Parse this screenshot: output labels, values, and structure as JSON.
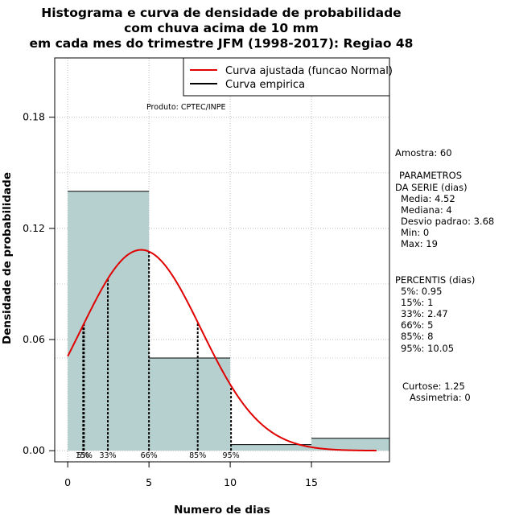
{
  "chart_data": {
    "type": "bar",
    "title_lines": [
      "Histograma e curva de densidade de probabilidade",
      "com chuva acima de 10 mm",
      "em cada mes do trimestre JFM (1998-2017): Regiao 48"
    ],
    "xlabel": "Numero de dias",
    "ylabel": "Densidade de probabilidade",
    "xlim": [
      -0.8,
      19.8
    ],
    "ylim": [
      -0.006,
      0.212
    ],
    "x_ticks": [
      0,
      5,
      10,
      15
    ],
    "y_ticks": [
      0.0,
      0.06,
      0.12,
      0.18
    ],
    "y_tick_labels": [
      "0.00",
      "0.06",
      "0.12",
      "0.18"
    ],
    "grid": true,
    "bins": [
      {
        "from": 0,
        "to": 5,
        "density": 0.14
      },
      {
        "from": 5,
        "to": 10,
        "density": 0.05
      },
      {
        "from": 10,
        "to": 15,
        "density": 0.0033
      },
      {
        "from": 15,
        "to": 20,
        "density": 0.0067
      }
    ],
    "fit_curve": {
      "name": "Curva ajustada (funcao Normal)",
      "mean": 4.52,
      "sd": 3.68,
      "x_from": 0,
      "x_to": 19,
      "color": "#e00000"
    },
    "empirical_curve": {
      "name": "Curva empirica",
      "color": "#000000"
    },
    "legend": [
      "Curva ajustada (funcao Normal)",
      "Curva empirica"
    ],
    "legend_position": "top-right",
    "percentile_lines": [
      {
        "label": "5%",
        "value": 0.95
      },
      {
        "label": "15%",
        "value": 1
      },
      {
        "label": "33%",
        "value": 2.47
      },
      {
        "label": "66%",
        "value": 5
      },
      {
        "label": "85%",
        "value": 8
      },
      {
        "label": "95%",
        "value": 10.05
      }
    ],
    "percentile_axis_labels": [
      "15%",
      "33%",
      "66%",
      "85%",
      "95%"
    ],
    "bar_color": "#b6cfcf"
  },
  "credit": "Produto: CPTEC/INPE",
  "sidebar": {
    "sample": "Amostra: 60",
    "params_title_1": "PARAMETROS",
    "params_title_2": "DA SERIE (dias)",
    "media": "Media: 4.52",
    "mediana": "Mediana: 4",
    "desvio": "Desvio padrao: 3.68",
    "min": "Min: 0",
    "max": "Max: 19",
    "percentis_title": "PERCENTIS (dias)",
    "p5": "5%: 0.95",
    "p15": "15%: 1",
    "p33": "33%: 2.47",
    "p66": "66%: 5",
    "p85": "85%: 8",
    "p95": "95%: 10.05",
    "curtose": "Curtose: 1.25",
    "assimetria": "Assimetria: 0"
  }
}
